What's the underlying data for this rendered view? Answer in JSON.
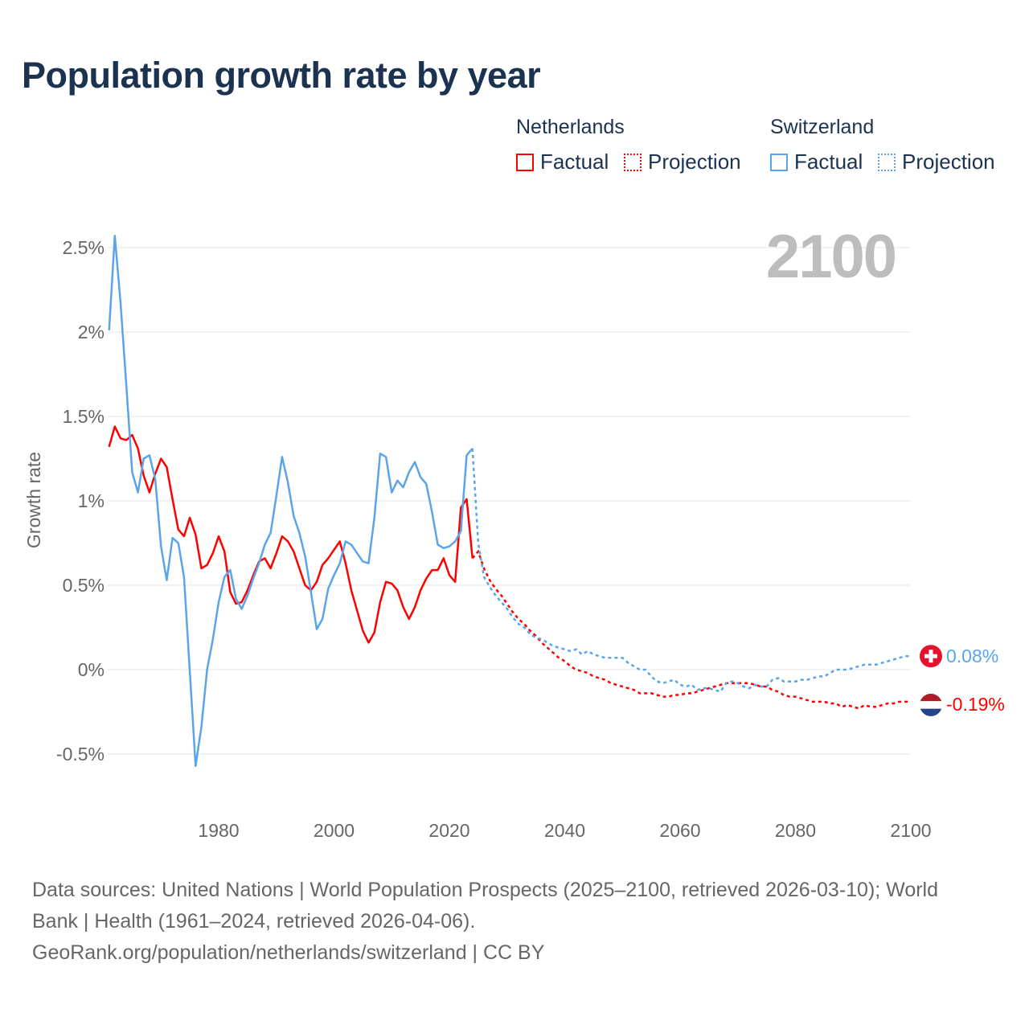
{
  "title": "Population growth rate by year",
  "legend": {
    "groups": [
      {
        "name": "Netherlands",
        "factual": "Factual",
        "projection": "Projection",
        "color": "#ff0000"
      },
      {
        "name": "Switzerland",
        "factual": "Factual",
        "projection": "Projection",
        "color": "#5aa5ea"
      }
    ]
  },
  "current_year": "2100",
  "end_labels": {
    "switzerland": "0.08%",
    "netherlands": "-0.19%"
  },
  "flags": {
    "switzerland": "switzerland-flag",
    "netherlands": "netherlands-flag"
  },
  "footer": {
    "sources": "Data sources: United Nations | World Population Prospects (2025–2100, retrieved 2026-03-10); World Bank | Health (1961–2024, retrieved 2026-04-06).",
    "credit": "GeoRank.org/population/netherlands/switzerland | CC BY"
  },
  "chart_data": {
    "type": "line",
    "title": "Population growth rate by year",
    "ylabel": "Growth rate",
    "xlabel": "",
    "xlim": [
      1961,
      2100
    ],
    "ylim": [
      -0.65,
      2.65
    ],
    "yticks": [
      -0.5,
      0,
      0.5,
      1,
      1.5,
      2,
      2.5
    ],
    "ytick_labels": [
      "-0.5%",
      "0%",
      "0.5%",
      "1%",
      "1.5%",
      "2%",
      "2.5%"
    ],
    "xticks": [
      1980,
      2000,
      2020,
      2040,
      2060,
      2080,
      2100
    ],
    "xtick_labels": [
      "1980",
      "2000",
      "2020",
      "2040",
      "2060",
      "2080",
      "2100"
    ],
    "grid": true,
    "legend_position": "top-right",
    "factual_start": 1961,
    "projection_start": 2024,
    "series": [
      {
        "name": "Netherlands",
        "color": "#ff0000",
        "factual": [
          1.32,
          1.44,
          1.37,
          1.36,
          1.39,
          1.31,
          1.15,
          1.05,
          1.16,
          1.25,
          1.2,
          1.01,
          0.83,
          0.79,
          0.9,
          0.8,
          0.6,
          0.62,
          0.69,
          0.79,
          0.7,
          0.46,
          0.39,
          0.4,
          0.47,
          0.56,
          0.64,
          0.66,
          0.6,
          0.69,
          0.79,
          0.76,
          0.7,
          0.6,
          0.5,
          0.47,
          0.52,
          0.62,
          0.66,
          0.71,
          0.76,
          0.63,
          0.47,
          0.35,
          0.23,
          0.16,
          0.22,
          0.4,
          0.52,
          0.51,
          0.47,
          0.37,
          0.3,
          0.37,
          0.47,
          0.54,
          0.59,
          0.59,
          0.66,
          0.56,
          0.52,
          0.96,
          1.01,
          0.66
        ],
        "projection": [
          0.66,
          0.7,
          0.6,
          0.53,
          0.48,
          0.44,
          0.39,
          0.34,
          0.3,
          0.27,
          0.23,
          0.2,
          0.16,
          0.13,
          0.1,
          0.07,
          0.05,
          0.02,
          0.0,
          -0.01,
          -0.02,
          -0.04,
          -0.05,
          -0.06,
          -0.08,
          -0.09,
          -0.1,
          -0.11,
          -0.12,
          -0.14,
          -0.14,
          -0.14,
          -0.15,
          -0.16,
          -0.16,
          -0.15,
          -0.15,
          -0.14,
          -0.14,
          -0.13,
          -0.12,
          -0.11,
          -0.1,
          -0.09,
          -0.08,
          -0.08,
          -0.08,
          -0.08,
          -0.08,
          -0.09,
          -0.1,
          -0.1,
          -0.12,
          -0.13,
          -0.15,
          -0.16,
          -0.16,
          -0.17,
          -0.18,
          -0.19,
          -0.19,
          -0.19,
          -0.2,
          -0.2,
          -0.22,
          -0.21,
          -0.22,
          -0.23,
          -0.21,
          -0.22,
          -0.22,
          -0.21,
          -0.2,
          -0.2,
          -0.19,
          -0.19,
          -0.19
        ]
      },
      {
        "name": "Switzerland",
        "color": "#5aa5ea",
        "factual": [
          2.01,
          2.57,
          2.17,
          1.68,
          1.17,
          1.05,
          1.25,
          1.27,
          1.13,
          0.73,
          0.53,
          0.78,
          0.75,
          0.55,
          -0.01,
          -0.57,
          -0.34,
          0.0,
          0.18,
          0.4,
          0.55,
          0.59,
          0.42,
          0.36,
          0.44,
          0.54,
          0.63,
          0.74,
          0.81,
          1.03,
          1.26,
          1.11,
          0.91,
          0.81,
          0.67,
          0.46,
          0.24,
          0.3,
          0.48,
          0.56,
          0.63,
          0.76,
          0.74,
          0.69,
          0.64,
          0.63,
          0.9,
          1.28,
          1.26,
          1.05,
          1.12,
          1.08,
          1.17,
          1.23,
          1.14,
          1.1,
          0.93,
          0.74,
          0.72,
          0.73,
          0.76,
          0.82,
          1.27,
          1.31
        ],
        "projection": [
          1.31,
          0.75,
          0.55,
          0.49,
          0.44,
          0.4,
          0.36,
          0.31,
          0.27,
          0.25,
          0.21,
          0.19,
          0.18,
          0.16,
          0.14,
          0.13,
          0.12,
          0.11,
          0.12,
          0.09,
          0.11,
          0.09,
          0.08,
          0.07,
          0.07,
          0.07,
          0.07,
          0.04,
          0.02,
          0.0,
          0.0,
          -0.04,
          -0.07,
          -0.08,
          -0.07,
          -0.06,
          -0.09,
          -0.1,
          -0.09,
          -0.12,
          -0.11,
          -0.11,
          -0.12,
          -0.13,
          -0.08,
          -0.07,
          -0.08,
          -0.1,
          -0.11,
          -0.09,
          -0.1,
          -0.1,
          -0.06,
          -0.05,
          -0.07,
          -0.07,
          -0.07,
          -0.06,
          -0.06,
          -0.05,
          -0.04,
          -0.04,
          -0.02,
          0.0,
          0.0,
          0.0,
          0.01,
          0.02,
          0.03,
          0.03,
          0.03,
          0.04,
          0.05,
          0.06,
          0.07,
          0.08,
          0.08
        ]
      }
    ]
  }
}
